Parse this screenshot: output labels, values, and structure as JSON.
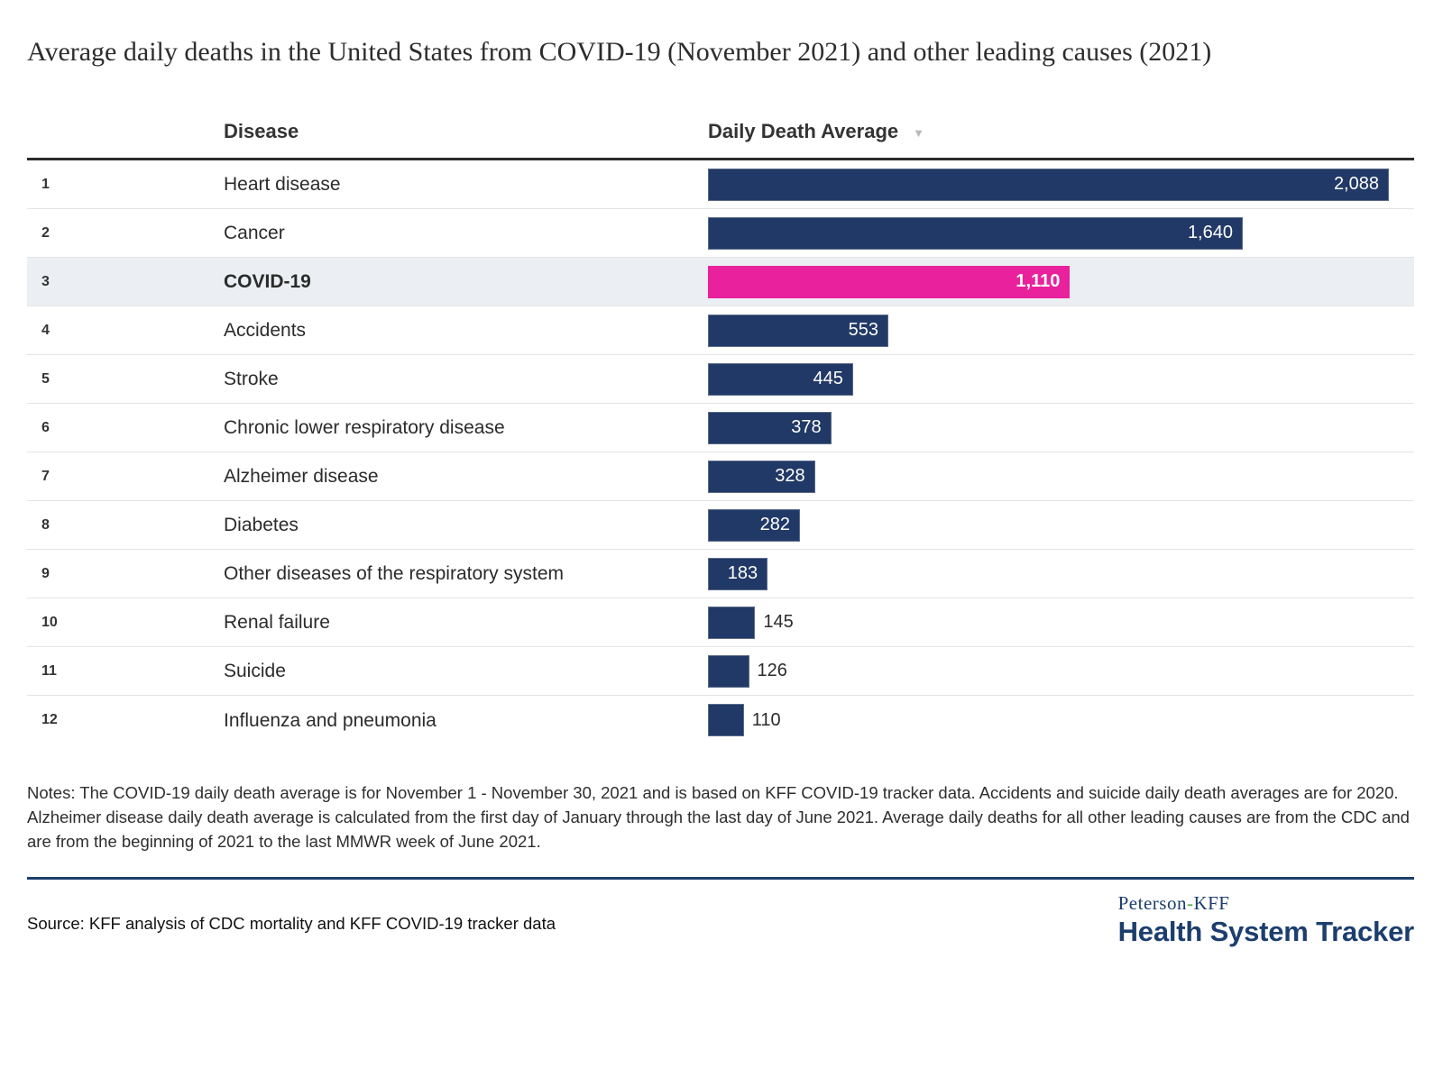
{
  "title": "Average daily deaths in the United States from COVID-19 (November 2021) and other leading causes (2021)",
  "table": {
    "columns": {
      "disease": "Disease",
      "value": "Daily Death Average"
    },
    "sort_icon": "▼",
    "rows": [
      {
        "rank": "1",
        "disease": "Heart disease",
        "value": 2088,
        "label": "2,088",
        "highlight": false,
        "label_inside": true
      },
      {
        "rank": "2",
        "disease": "Cancer",
        "value": 1640,
        "label": "1,640",
        "highlight": false,
        "label_inside": true
      },
      {
        "rank": "3",
        "disease": "COVID-19",
        "value": 1110,
        "label": "1,110",
        "highlight": true,
        "label_inside": true
      },
      {
        "rank": "4",
        "disease": "Accidents",
        "value": 553,
        "label": "553",
        "highlight": false,
        "label_inside": true
      },
      {
        "rank": "5",
        "disease": "Stroke",
        "value": 445,
        "label": "445",
        "highlight": false,
        "label_inside": true
      },
      {
        "rank": "6",
        "disease": "Chronic lower respiratory disease",
        "value": 378,
        "label": "378",
        "highlight": false,
        "label_inside": true
      },
      {
        "rank": "7",
        "disease": "Alzheimer disease",
        "value": 328,
        "label": "328",
        "highlight": false,
        "label_inside": true
      },
      {
        "rank": "8",
        "disease": "Diabetes",
        "value": 282,
        "label": "282",
        "highlight": false,
        "label_inside": true
      },
      {
        "rank": "9",
        "disease": "Other diseases of the respiratory system",
        "value": 183,
        "label": "183",
        "highlight": false,
        "label_inside": true
      },
      {
        "rank": "10",
        "disease": "Renal failure",
        "value": 145,
        "label": "145",
        "highlight": false,
        "label_inside": false
      },
      {
        "rank": "11",
        "disease": "Suicide",
        "value": 126,
        "label": "126",
        "highlight": false,
        "label_inside": false
      },
      {
        "rank": "12",
        "disease": "Influenza and pneumonia",
        "value": 110,
        "label": "110",
        "highlight": false,
        "label_inside": false
      }
    ]
  },
  "chart_data": {
    "type": "bar",
    "orientation": "horizontal",
    "title": "Average daily deaths in the United States from COVID-19 (November 2021) and other leading causes (2021)",
    "categories": [
      "Heart disease",
      "Cancer",
      "COVID-19",
      "Accidents",
      "Stroke",
      "Chronic lower respiratory disease",
      "Alzheimer disease",
      "Diabetes",
      "Other diseases of the respiratory system",
      "Renal failure",
      "Suicide",
      "Influenza and pneumonia"
    ],
    "values": [
      2088,
      1640,
      1110,
      553,
      445,
      378,
      328,
      282,
      183,
      145,
      126,
      110
    ],
    "value_labels": [
      "2,088",
      "1,640",
      "1,110",
      "553",
      "445",
      "378",
      "328",
      "282",
      "183",
      "145",
      "126",
      "110"
    ],
    "xlabel": "Daily Death Average",
    "ylabel": "Disease",
    "xlim": [
      0,
      2088
    ],
    "grid": false,
    "legend": false,
    "sort": "descending",
    "highlight_category": "COVID-19",
    "bar_color": "#213966",
    "highlight_bar_color": "#e9219c",
    "highlight_row_background": "#ebeff3"
  },
  "notes": "Notes: The COVID-19 daily death average is for November 1 - November 30, 2021 and is based on KFF COVID-19 tracker data. Accidents and suicide daily death averages are for 2020. Alzheimer disease daily death average is calculated from the first day of January through the last day of June 2021. Average daily deaths for all other leading causes are from the CDC and are from the beginning of 2021 to the last MMWR week of June 2021.",
  "source": "Source: KFF analysis of CDC mortality and KFF COVID-19 tracker data",
  "logo": {
    "brand_part1": "Peterson",
    "brand_hyphen": "-",
    "brand_part2": "KFF",
    "name": "Health System Tracker"
  },
  "colors": {
    "bar": "#213966",
    "highlight_bar": "#e9219c",
    "highlight_row": "#ebeff3",
    "brand_navy": "#1c3e6e",
    "brand_green": "#56a944"
  }
}
